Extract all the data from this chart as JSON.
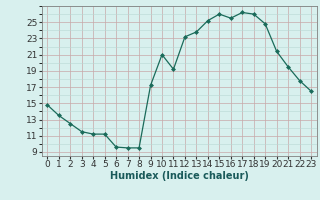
{
  "x": [
    0,
    1,
    2,
    3,
    4,
    5,
    6,
    7,
    8,
    9,
    10,
    11,
    12,
    13,
    14,
    15,
    16,
    17,
    18,
    19,
    20,
    21,
    22,
    23
  ],
  "y": [
    14.8,
    13.5,
    12.5,
    11.5,
    11.2,
    11.2,
    9.6,
    9.5,
    9.5,
    17.2,
    21.0,
    19.2,
    23.2,
    23.8,
    25.2,
    26.0,
    25.5,
    26.2,
    26.0,
    24.8,
    21.4,
    19.5,
    17.8,
    16.5
  ],
  "line_color": "#1a6b5a",
  "marker": "D",
  "marker_size": 2.0,
  "bg_color": "#d8f0ee",
  "grid_minor_color": "#b8d8d4",
  "grid_major_color": "#c8a8a8",
  "xlabel": "Humidex (Indice chaleur)",
  "xlim": [
    -0.5,
    23.5
  ],
  "ylim": [
    8.5,
    27.0
  ],
  "yticks": [
    9,
    11,
    13,
    15,
    17,
    19,
    21,
    23,
    25
  ],
  "xticks": [
    0,
    1,
    2,
    3,
    4,
    5,
    6,
    7,
    8,
    9,
    10,
    11,
    12,
    13,
    14,
    15,
    16,
    17,
    18,
    19,
    20,
    21,
    22,
    23
  ],
  "xlabel_fontsize": 7,
  "tick_fontsize": 6.5
}
